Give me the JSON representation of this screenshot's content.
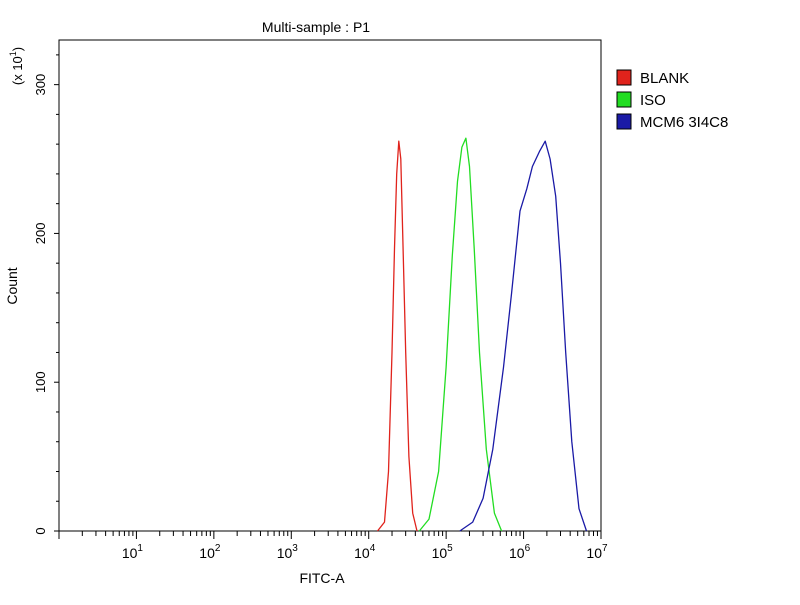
{
  "chart_data": {
    "type": "line",
    "title": "Multi-sample : P1",
    "xlabel": "FITC-A",
    "ylabel": "Count",
    "y_multiplier_label": "(x 10",
    "y_multiplier_exp": "1",
    "x_scale": "log",
    "xlim": [
      1,
      10000000
    ],
    "ylim": [
      0,
      330
    ],
    "x_tick_labels": [
      {
        "base": "10",
        "exp": "1",
        "value": 10
      },
      {
        "base": "10",
        "exp": "2",
        "value": 100
      },
      {
        "base": "10",
        "exp": "3",
        "value": 1000
      },
      {
        "base": "10",
        "exp": "4",
        "value": 10000
      },
      {
        "base": "10",
        "exp": "5",
        "value": 100000
      },
      {
        "base": "10",
        "exp": "6",
        "value": 1000000
      },
      {
        "base": "10",
        "exp": "7",
        "value": 10000000
      }
    ],
    "y_tick_labels": [
      {
        "label": "0",
        "value": 0
      },
      {
        "label": "100",
        "value": 100
      },
      {
        "label": "200",
        "value": 200
      },
      {
        "label": "300",
        "value": 300
      }
    ],
    "legend_position": "right",
    "series": [
      {
        "name": "BLANK",
        "color": "#e0231c",
        "points": [
          [
            13000,
            0
          ],
          [
            16000,
            6
          ],
          [
            18000,
            40
          ],
          [
            20000,
            120
          ],
          [
            21500,
            190
          ],
          [
            23000,
            240
          ],
          [
            24500,
            262
          ],
          [
            26000,
            250
          ],
          [
            27500,
            200
          ],
          [
            30000,
            120
          ],
          [
            33000,
            50
          ],
          [
            37000,
            12
          ],
          [
            42000,
            0
          ]
        ]
      },
      {
        "name": "ISO",
        "color": "#22dd22",
        "points": [
          [
            45000,
            0
          ],
          [
            60000,
            8
          ],
          [
            80000,
            40
          ],
          [
            100000,
            110
          ],
          [
            120000,
            185
          ],
          [
            140000,
            235
          ],
          [
            160000,
            258
          ],
          [
            180000,
            264
          ],
          [
            200000,
            245
          ],
          [
            230000,
            190
          ],
          [
            270000,
            120
          ],
          [
            330000,
            55
          ],
          [
            420000,
            12
          ],
          [
            520000,
            0
          ]
        ]
      },
      {
        "name": "MCM6 3I4C8",
        "color": "#1a1aa6",
        "points": [
          [
            150000,
            0
          ],
          [
            220000,
            6
          ],
          [
            300000,
            22
          ],
          [
            400000,
            55
          ],
          [
            550000,
            110
          ],
          [
            700000,
            160
          ],
          [
            900000,
            215
          ],
          [
            1100000,
            230
          ],
          [
            1300000,
            245
          ],
          [
            1600000,
            255
          ],
          [
            1900000,
            262
          ],
          [
            2200000,
            250
          ],
          [
            2600000,
            225
          ],
          [
            3000000,
            180
          ],
          [
            3500000,
            120
          ],
          [
            4200000,
            60
          ],
          [
            5200000,
            15
          ],
          [
            6500000,
            0
          ]
        ]
      }
    ]
  }
}
